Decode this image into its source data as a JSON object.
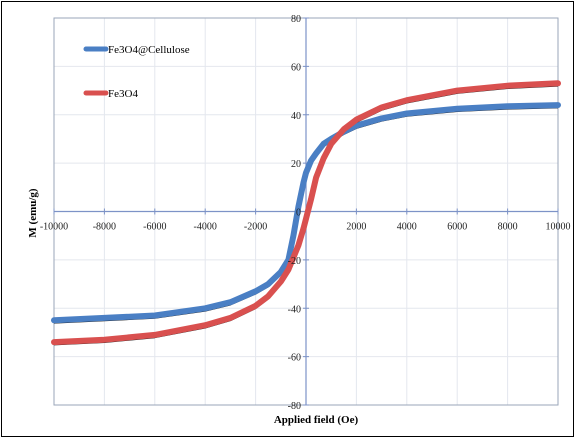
{
  "chart_data": {
    "type": "line",
    "xlabel": "Applied field (Oe)",
    "ylabel": "M (emu/g)",
    "xlim": [
      -10000,
      10000
    ],
    "ylim": [
      -80,
      80
    ],
    "x_ticks": [
      -10000,
      -8000,
      -6000,
      -4000,
      -2000,
      0,
      2000,
      4000,
      6000,
      8000,
      10000
    ],
    "y_ticks": [
      -80,
      -60,
      -40,
      -20,
      0,
      20,
      40,
      60,
      80
    ],
    "grid": true,
    "legend_position": "top-left",
    "series": [
      {
        "name": "Fe3O4@Cellulose",
        "color": "#4a7fc4",
        "x": [
          -10000,
          -8000,
          -6000,
          -4000,
          -3000,
          -2000,
          -1500,
          -1000,
          -700,
          -500,
          -300,
          -100,
          0,
          200,
          400,
          700,
          1000,
          1500,
          2000,
          3000,
          4000,
          6000,
          8000,
          10000
        ],
        "y": [
          -45,
          -44,
          -43,
          -40,
          -37.5,
          -33,
          -30,
          -25,
          -20,
          -10,
          2,
          12,
          16,
          21,
          24,
          28,
          30,
          33,
          35.5,
          38.5,
          40.5,
          42.5,
          43.5,
          44
        ]
      },
      {
        "name": "Fe3O4",
        "color": "#d9504f",
        "x": [
          -10000,
          -8000,
          -6000,
          -4000,
          -3000,
          -2000,
          -1500,
          -1000,
          -700,
          -500,
          -300,
          -100,
          0,
          200,
          400,
          700,
          1000,
          1500,
          2000,
          3000,
          4000,
          6000,
          8000,
          10000
        ],
        "y": [
          -54,
          -53,
          -51,
          -47,
          -44,
          -39,
          -35,
          -29,
          -24,
          -19,
          -14,
          -7,
          -3,
          5,
          14,
          22,
          28,
          34,
          38,
          43,
          46,
          50,
          52,
          53
        ]
      }
    ]
  }
}
